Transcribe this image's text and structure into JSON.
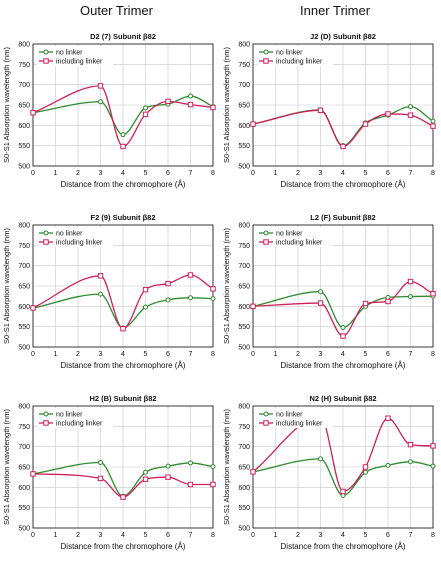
{
  "column_titles": [
    "Outer Trimer",
    "Inner Trimer"
  ],
  "colors": {
    "no_linker": "#2e8b2e",
    "including_linker": "#d0205a"
  },
  "chart_data": [
    {
      "type": "line",
      "title": "D2 (7) Subunit β82",
      "xlabel": "Distance from the chromophore (Å)",
      "ylabel": "S0-S1 Absorption wavelength (nm)",
      "xlim": [
        0,
        8
      ],
      "ylim": [
        500,
        800
      ],
      "xticks": [
        0,
        1,
        2,
        3,
        4,
        5,
        6,
        7,
        8
      ],
      "yticks": [
        500,
        550,
        600,
        650,
        700,
        750,
        800
      ],
      "legend_position": "top-left",
      "series": [
        {
          "name": "no linker",
          "x": [
            0,
            3,
            4,
            5,
            6,
            7,
            8
          ],
          "y": [
            631,
            658,
            577,
            643,
            652,
            672,
            646
          ]
        },
        {
          "name": "including linker",
          "x": [
            0,
            3,
            4,
            5,
            6,
            7,
            8
          ],
          "y": [
            631,
            697,
            548,
            627,
            659,
            651,
            644
          ]
        }
      ]
    },
    {
      "type": "line",
      "title": "J2 (D) Subunit β82",
      "xlabel": "Distance from the chromophore (Å)",
      "ylabel": "S0-S1 Absorption wavelength (nm)",
      "xlim": [
        0,
        8
      ],
      "ylim": [
        500,
        800
      ],
      "xticks": [
        0,
        1,
        2,
        3,
        4,
        5,
        6,
        7,
        8
      ],
      "yticks": [
        500,
        550,
        600,
        650,
        700,
        750,
        800
      ],
      "legend_position": "top-left",
      "series": [
        {
          "name": "no linker",
          "x": [
            0,
            3,
            4,
            5,
            6,
            7,
            8
          ],
          "y": [
            603,
            638,
            550,
            606,
            625,
            646,
            610
          ]
        },
        {
          "name": "including linker",
          "x": [
            0,
            3,
            4,
            5,
            6,
            7,
            8
          ],
          "y": [
            603,
            637,
            548,
            603,
            628,
            625,
            598
          ]
        }
      ]
    },
    {
      "type": "line",
      "title": "F2 (9) Subunit β82",
      "xlabel": "Distance from the chromophore (Å)",
      "ylabel": "S0-S1 Absorption wavelength (nm)",
      "xlim": [
        0,
        8
      ],
      "ylim": [
        500,
        800
      ],
      "xticks": [
        0,
        1,
        2,
        3,
        4,
        5,
        6,
        7,
        8
      ],
      "yticks": [
        500,
        550,
        600,
        650,
        700,
        750,
        800
      ],
      "legend_position": "top-left",
      "series": [
        {
          "name": "no linker",
          "x": [
            0,
            3,
            4,
            5,
            6,
            7,
            8
          ],
          "y": [
            596,
            630,
            547,
            598,
            616,
            621,
            619
          ]
        },
        {
          "name": "including linker",
          "x": [
            0,
            3,
            4,
            5,
            6,
            7,
            8
          ],
          "y": [
            596,
            675,
            545,
            641,
            656,
            677,
            643
          ]
        }
      ]
    },
    {
      "type": "line",
      "title": "L2 (F) Subunit β82",
      "xlabel": "Distance from the chromophore (Å)",
      "ylabel": "S0-S1 Absorption wavelength (nm)",
      "xlim": [
        0,
        8
      ],
      "ylim": [
        500,
        800
      ],
      "xticks": [
        0,
        1,
        2,
        3,
        4,
        5,
        6,
        7,
        8
      ],
      "yticks": [
        500,
        550,
        600,
        650,
        700,
        750,
        800
      ],
      "legend_position": "top-left",
      "series": [
        {
          "name": "no linker",
          "x": [
            0,
            3,
            4,
            5,
            6,
            7,
            8
          ],
          "y": [
            600,
            636,
            548,
            600,
            622,
            624,
            625
          ]
        },
        {
          "name": "including linker",
          "x": [
            0,
            3,
            4,
            5,
            6,
            7,
            8
          ],
          "y": [
            600,
            608,
            527,
            607,
            612,
            661,
            631
          ]
        }
      ]
    },
    {
      "type": "line",
      "title": "H2 (B) Subunit β82",
      "xlabel": "Distance from the chromophore (Å)",
      "ylabel": "S0-S1 Absorption wavelength (nm)",
      "xlim": [
        0,
        8
      ],
      "ylim": [
        500,
        800
      ],
      "xticks": [
        0,
        1,
        2,
        3,
        4,
        5,
        6,
        7,
        8
      ],
      "yticks": [
        500,
        550,
        600,
        650,
        700,
        750,
        800
      ],
      "legend_position": "top-left",
      "series": [
        {
          "name": "no linker",
          "x": [
            0,
            3,
            4,
            5,
            6,
            7,
            8
          ],
          "y": [
            633,
            661,
            578,
            637,
            652,
            660,
            651
          ]
        },
        {
          "name": "including linker",
          "x": [
            0,
            3,
            4,
            5,
            6,
            7,
            8
          ],
          "y": [
            633,
            622,
            576,
            620,
            625,
            607,
            607
          ]
        }
      ]
    },
    {
      "type": "line",
      "title": "N2 (H) Subunit β82",
      "xlabel": "Distance from the chromophore (Å)",
      "ylabel": "S0-S1 Absorption wavelength (nm)",
      "xlim": [
        0,
        8
      ],
      "ylim": [
        500,
        800
      ],
      "xticks": [
        0,
        1,
        2,
        3,
        4,
        5,
        6,
        7,
        8
      ],
      "yticks": [
        500,
        550,
        600,
        650,
        700,
        750,
        800
      ],
      "legend_position": "top-left",
      "series": [
        {
          "name": "no linker",
          "x": [
            0,
            3,
            4,
            5,
            6,
            7,
            8
          ],
          "y": [
            638,
            670,
            580,
            637,
            654,
            663,
            652
          ]
        },
        {
          "name": "including linker",
          "x": [
            0,
            3,
            4,
            5,
            6,
            7,
            8
          ],
          "y": [
            638,
            773,
            590,
            650,
            770,
            705,
            702
          ]
        }
      ]
    }
  ]
}
